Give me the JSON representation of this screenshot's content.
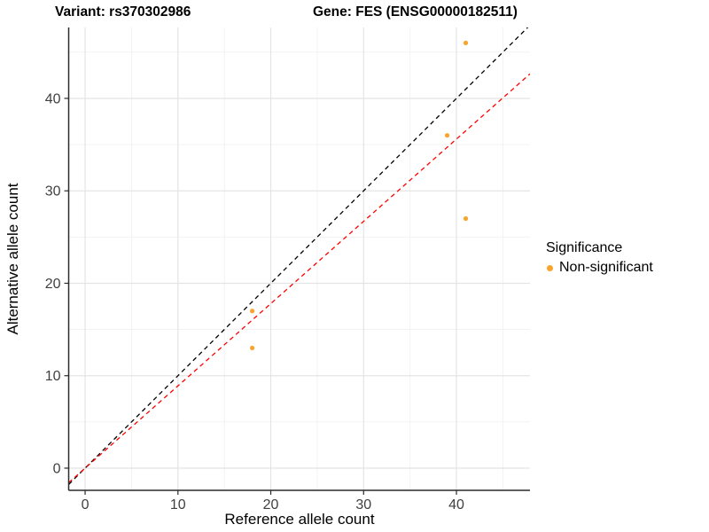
{
  "titles": {
    "variant": "Variant: rs370302986",
    "gene": "Gene: FES (ENSG00000182511)"
  },
  "axes": {
    "x_label": "Reference allele count",
    "y_label": "Alternative allele count"
  },
  "legend": {
    "title": "Significance",
    "items": [
      {
        "label": "Non-significant",
        "color": "#F9A42C",
        "marker": "dot-icon"
      }
    ]
  },
  "chart_data": {
    "type": "scatter",
    "title": "Variant: rs370302986 — Gene: FES (ENSG00000182511)",
    "xlabel": "Reference allele count",
    "ylabel": "Alternative allele count",
    "xlim": [
      -1.77,
      47.92
    ],
    "ylim": [
      -2.4,
      47.67
    ],
    "x_major_ticks": [
      0,
      10,
      20,
      30,
      40
    ],
    "y_major_ticks": [
      0,
      10,
      20,
      30,
      40
    ],
    "x_minor_ticks": [
      5,
      15,
      25,
      35,
      45
    ],
    "y_minor_ticks": [
      5,
      15,
      25,
      35,
      45
    ],
    "grid": true,
    "legend_position": "right",
    "series": [
      {
        "name": "Non-significant",
        "color": "#F9A42C",
        "points": [
          [
            18,
            13
          ],
          [
            18,
            17
          ],
          [
            39,
            36
          ],
          [
            41,
            27
          ],
          [
            41,
            46
          ]
        ]
      }
    ],
    "reference_lines": [
      {
        "name": "identity-line",
        "slope": 1.0,
        "intercept": 0,
        "color": "#000000",
        "style": "dashed"
      },
      {
        "name": "ratio-line",
        "slope": 0.89,
        "intercept": 0,
        "color": "#FF0000",
        "style": "dashed"
      }
    ],
    "colors": {
      "major_grid": "#E4E4E4",
      "minor_grid": "#F1F1F1",
      "axis_line": "#2B2B2B",
      "tick_label": "#404040",
      "panel_background": "#FFFFFF"
    }
  }
}
